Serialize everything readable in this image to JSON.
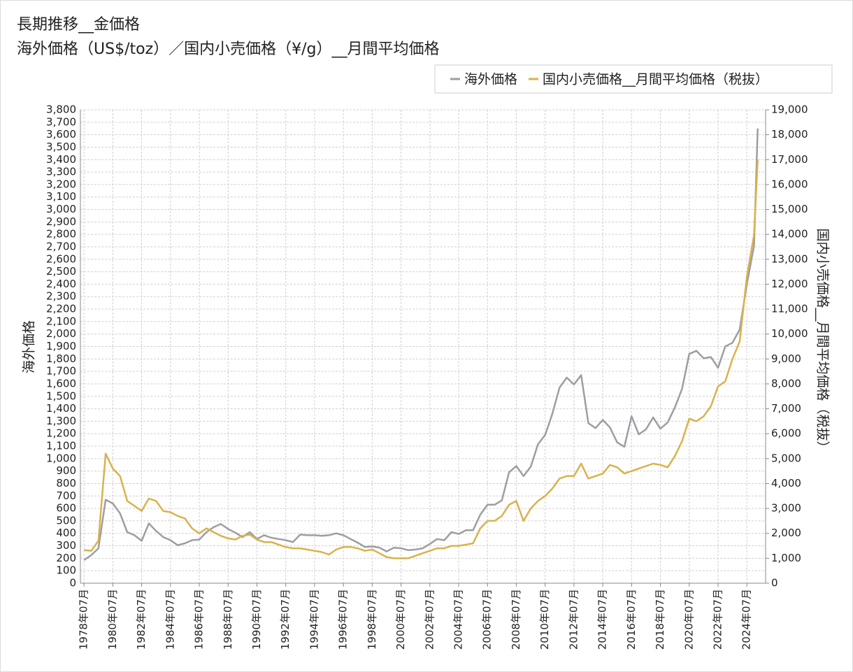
{
  "chart_data": {
    "type": "line",
    "title": "長期推移__金価格",
    "subtitle": "海外価格（US$/toz）／国内小売価格（¥/g）__月間平均価格",
    "y_label": "海外価格",
    "y2_label": "国内小売価格__月間平均価格（税抜）",
    "grid": true,
    "legend": "top-right",
    "x": [
      1978.5,
      1979.0,
      1979.5,
      1980.0,
      1980.5,
      1981.0,
      1981.5,
      1982.0,
      1982.5,
      1983.0,
      1983.5,
      1984.0,
      1984.5,
      1985.0,
      1985.5,
      1986.0,
      1986.5,
      1987.0,
      1987.5,
      1988.0,
      1988.5,
      1989.0,
      1989.5,
      1990.0,
      1990.5,
      1991.0,
      1991.5,
      1992.0,
      1992.5,
      1993.0,
      1993.5,
      1994.0,
      1994.5,
      1995.0,
      1995.5,
      1996.0,
      1996.5,
      1997.0,
      1997.5,
      1998.0,
      1998.5,
      1999.0,
      1999.5,
      2000.0,
      2000.5,
      2001.0,
      2001.5,
      2002.0,
      2002.5,
      2003.0,
      2003.5,
      2004.0,
      2004.5,
      2005.0,
      2005.5,
      2006.0,
      2006.5,
      2007.0,
      2007.5,
      2008.0,
      2008.5,
      2009.0,
      2009.5,
      2010.0,
      2010.5,
      2011.0,
      2011.5,
      2012.0,
      2012.5,
      2013.0,
      2013.5,
      2014.0,
      2014.5,
      2015.0,
      2015.5,
      2016.0,
      2016.5,
      2017.0,
      2017.5,
      2018.0,
      2018.5,
      2019.0,
      2019.5,
      2020.0,
      2020.5,
      2021.0,
      2021.5,
      2022.0,
      2022.5,
      2023.0,
      2023.5,
      2024.0,
      2024.5,
      2025.0,
      2025.25
    ],
    "series": [
      {
        "name": "海外価格",
        "color": "#9d9ea3",
        "values": [
          185,
          225,
          280,
          670,
          640,
          560,
          410,
          385,
          340,
          480,
          420,
          370,
          345,
          305,
          320,
          345,
          350,
          410,
          450,
          475,
          435,
          405,
          370,
          410,
          355,
          385,
          365,
          355,
          345,
          330,
          390,
          385,
          385,
          380,
          385,
          400,
          385,
          355,
          325,
          290,
          295,
          285,
          255,
          285,
          280,
          265,
          270,
          280,
          315,
          355,
          345,
          410,
          395,
          425,
          425,
          550,
          630,
          630,
          665,
          890,
          940,
          860,
          935,
          1115,
          1190,
          1360,
          1570,
          1650,
          1595,
          1670,
          1285,
          1245,
          1310,
          1250,
          1130,
          1095,
          1340,
          1195,
          1235,
          1330,
          1240,
          1290,
          1410,
          1560,
          1840,
          1865,
          1805,
          1815,
          1730,
          1900,
          1930,
          2035,
          2400,
          2710,
          3650
        ]
      },
      {
        "name": "国内小売価格__月間平均価格（税抜）",
        "color": "#d9b24c",
        "axis": "y2",
        "values": [
          1330,
          1300,
          1700,
          5200,
          4600,
          4300,
          3300,
          3100,
          2900,
          3400,
          3300,
          2900,
          2850,
          2700,
          2600,
          2200,
          2000,
          2200,
          2050,
          1900,
          1800,
          1750,
          1900,
          1950,
          1750,
          1650,
          1650,
          1550,
          1450,
          1400,
          1400,
          1350,
          1300,
          1250,
          1150,
          1350,
          1450,
          1450,
          1400,
          1300,
          1350,
          1200,
          1050,
          1000,
          1000,
          1000,
          1100,
          1200,
          1300,
          1400,
          1400,
          1500,
          1500,
          1550,
          1600,
          2200,
          2500,
          2500,
          2700,
          3150,
          3300,
          2500,
          3000,
          3300,
          3500,
          3800,
          4200,
          4300,
          4300,
          4800,
          4200,
          4300,
          4400,
          4750,
          4650,
          4400,
          4500,
          4600,
          4700,
          4800,
          4750,
          4650,
          5100,
          5700,
          6600,
          6500,
          6700,
          7100,
          7900,
          8100,
          9000,
          9700,
          12300,
          14000,
          17000
        ]
      }
    ],
    "xlim": [
      1978.25,
      2025.8
    ],
    "xticks": [
      {
        "value": 1978.5,
        "label": "1978年07月"
      },
      {
        "value": 1980.5,
        "label": "1980年07月"
      },
      {
        "value": 1982.5,
        "label": "1982年07月"
      },
      {
        "value": 1984.5,
        "label": "1984年07月"
      },
      {
        "value": 1986.5,
        "label": "1986年07月"
      },
      {
        "value": 1988.5,
        "label": "1988年07月"
      },
      {
        "value": 1990.5,
        "label": "1990年07月"
      },
      {
        "value": 1992.5,
        "label": "1992年07月"
      },
      {
        "value": 1994.5,
        "label": "1994年07月"
      },
      {
        "value": 1996.5,
        "label": "1996年07月"
      },
      {
        "value": 1998.5,
        "label": "1998年07月"
      },
      {
        "value": 2000.5,
        "label": "2000年07月"
      },
      {
        "value": 2002.5,
        "label": "2002年07月"
      },
      {
        "value": 2004.5,
        "label": "2004年07月"
      },
      {
        "value": 2006.5,
        "label": "2006年07月"
      },
      {
        "value": 2008.5,
        "label": "2008年07月"
      },
      {
        "value": 2010.5,
        "label": "2010年07月"
      },
      {
        "value": 2012.5,
        "label": "2012年07月"
      },
      {
        "value": 2014.5,
        "label": "2014年07月"
      },
      {
        "value": 2016.5,
        "label": "2016年07月"
      },
      {
        "value": 2018.5,
        "label": "2018年07月"
      },
      {
        "value": 2020.5,
        "label": "2020年07月"
      },
      {
        "value": 2022.5,
        "label": "2022年07月"
      },
      {
        "value": 2024.5,
        "label": "2024年07月"
      }
    ],
    "ylim": [
      0,
      3800
    ],
    "yticks": [
      0,
      100,
      200,
      300,
      400,
      500,
      600,
      700,
      800,
      900,
      {
        "value": 1000,
        "label": "1,000"
      },
      {
        "value": 1100,
        "label": "1,100"
      },
      {
        "value": 1200,
        "label": "1,200"
      },
      {
        "value": 1300,
        "label": "1,300"
      },
      {
        "value": 1400,
        "label": "1,400"
      },
      {
        "value": 1500,
        "label": "1,500"
      },
      {
        "value": 1600,
        "label": "1,600"
      },
      {
        "value": 1700,
        "label": "1,700"
      },
      {
        "value": 1800,
        "label": "1,800"
      },
      {
        "value": 1900,
        "label": "1,900"
      },
      {
        "value": 2000,
        "label": "2,000"
      },
      {
        "value": 2100,
        "label": "2,100"
      },
      {
        "value": 2200,
        "label": "2,200"
      },
      {
        "value": 2300,
        "label": "2,300"
      },
      {
        "value": 2400,
        "label": "2,400"
      },
      {
        "value": 2500,
        "label": "2,500"
      },
      {
        "value": 2600,
        "label": "2,600"
      },
      {
        "value": 2700,
        "label": "2,700"
      },
      {
        "value": 2800,
        "label": "2,800"
      },
      {
        "value": 2900,
        "label": "2,900"
      },
      {
        "value": 3000,
        "label": "3,000"
      },
      {
        "value": 3100,
        "label": "3,100"
      },
      {
        "value": 3200,
        "label": "3,200"
      },
      {
        "value": 3300,
        "label": "3,300"
      },
      {
        "value": 3400,
        "label": "3,400"
      },
      {
        "value": 3500,
        "label": "3,500"
      },
      {
        "value": 3600,
        "label": "3,600"
      },
      {
        "value": 3700,
        "label": "3,700"
      },
      {
        "value": 3800,
        "label": "3,800"
      }
    ],
    "y2lim": [
      0,
      19000
    ],
    "y2ticks": [
      0,
      {
        "value": 1000,
        "label": "1,000"
      },
      {
        "value": 2000,
        "label": "2,000"
      },
      {
        "value": 3000,
        "label": "3,000"
      },
      {
        "value": 4000,
        "label": "4,000"
      },
      {
        "value": 5000,
        "label": "5,000"
      },
      {
        "value": 6000,
        "label": "6,000"
      },
      {
        "value": 7000,
        "label": "7,000"
      },
      {
        "value": 8000,
        "label": "8,000"
      },
      {
        "value": 9000,
        "label": "9,000"
      },
      {
        "value": 10000,
        "label": "10,000"
      },
      {
        "value": 11000,
        "label": "11,000"
      },
      {
        "value": 12000,
        "label": "12,000"
      },
      {
        "value": 13000,
        "label": "13,000"
      },
      {
        "value": 14000,
        "label": "14,000"
      },
      {
        "value": 15000,
        "label": "15,000"
      },
      {
        "value": 16000,
        "label": "16,000"
      },
      {
        "value": 17000,
        "label": "17,000"
      },
      {
        "value": 18000,
        "label": "18,000"
      },
      {
        "value": 19000,
        "label": "19,000"
      }
    ]
  }
}
